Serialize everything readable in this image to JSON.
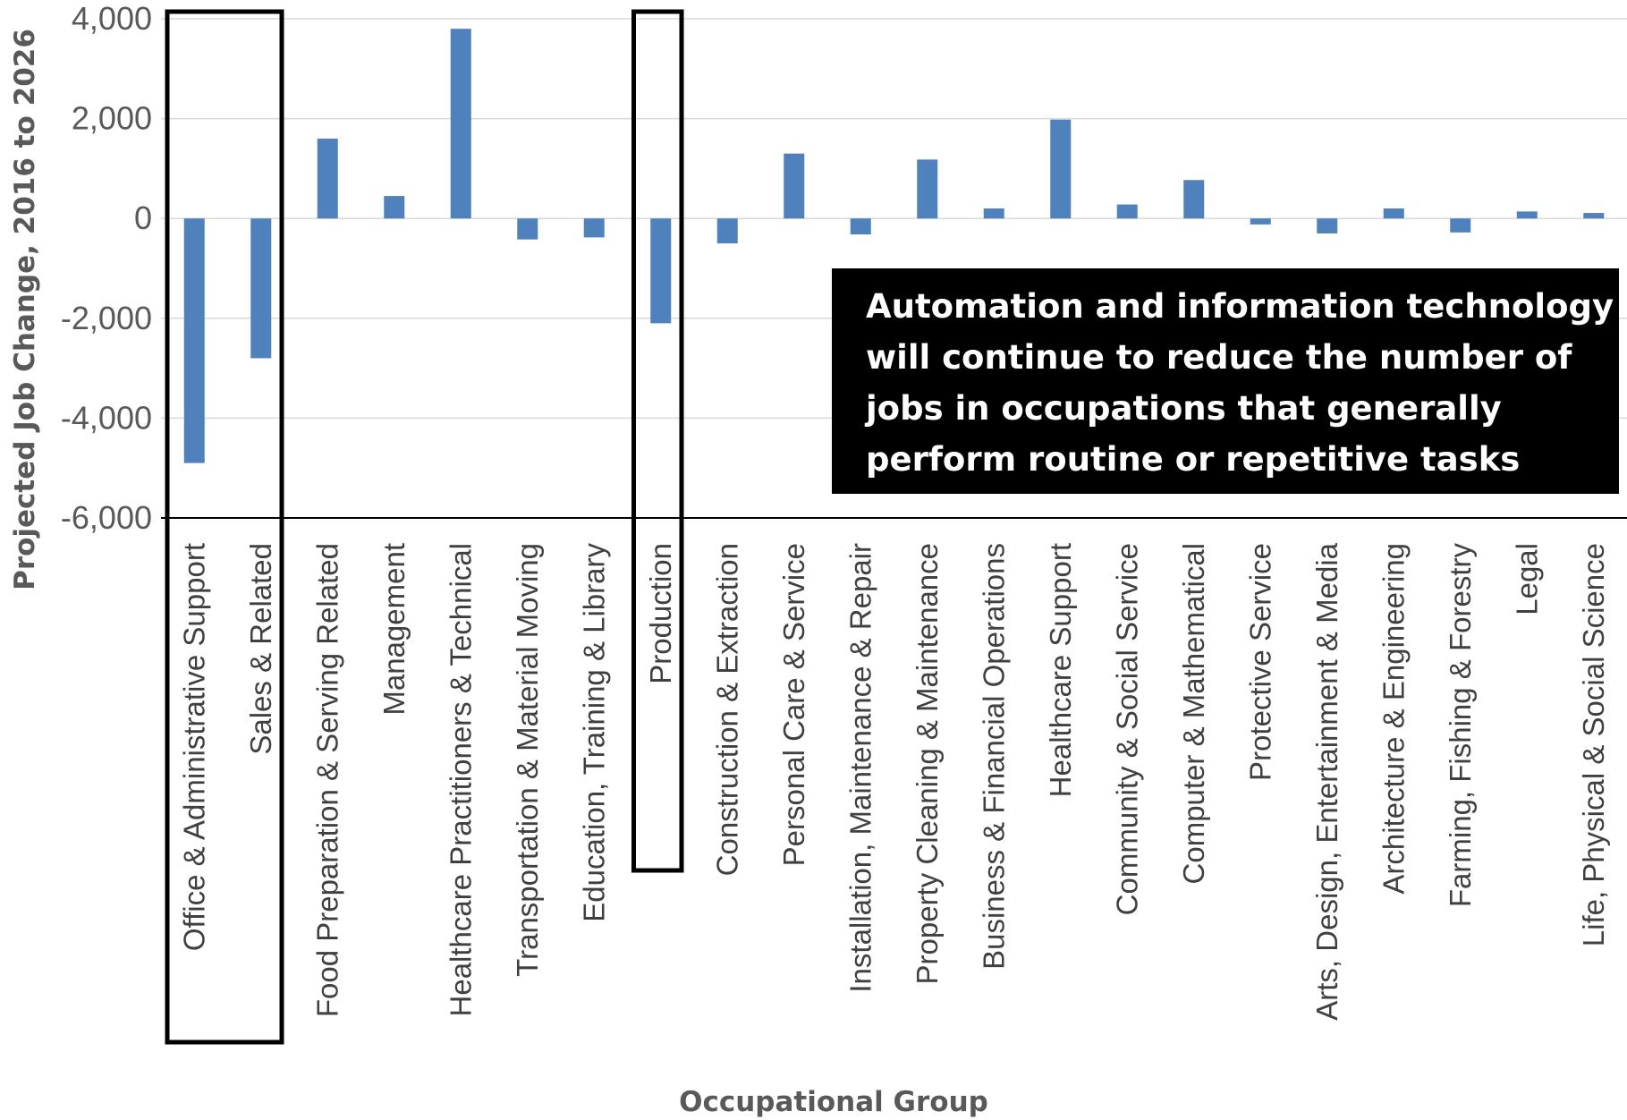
{
  "chart_data": {
    "type": "bar",
    "title": "",
    "xlabel": "Occupational Group",
    "ylabel": "Projected Job Change, 2016 to 2026",
    "ylim": [
      -6000,
      4000
    ],
    "yticks": [
      4000,
      2000,
      0,
      -2000,
      -4000,
      -6000
    ],
    "ytick_labels": [
      "4,000",
      "2,000",
      "0",
      "-2,000",
      "-4,000",
      "-6,000"
    ],
    "grid": true,
    "bar_color": "#4F81BD",
    "categories": [
      "Office & Administrative Support",
      "Sales & Related",
      "Food Preparation & Serving Related",
      "Management",
      "Healthcare Practitioners & Technical",
      "Transportation & Material Moving",
      "Education, Training & Library",
      "Production",
      "Construction & Extraction",
      "Personal Care & Service",
      "Installation, Maintenance & Repair",
      "Property Cleaning & Maintenance",
      "Business & Financial Operations",
      "Healthcare Support",
      "Community & Social Service",
      "Computer & Mathematical",
      "Protective Service",
      "Arts, Design, Entertainment & Media",
      "Architecture & Engineering",
      "Farming, Fishing & Forestry",
      "Legal",
      "Life, Physical & Social Science"
    ],
    "values": [
      -4900,
      -2800,
      1600,
      450,
      3800,
      -420,
      -380,
      -2100,
      -500,
      1300,
      -320,
      1180,
      200,
      1980,
      280,
      770,
      -120,
      -300,
      200,
      -280,
      140,
      110
    ],
    "highlighted_groups": [
      [
        "Office & Administrative Support",
        "Sales & Related"
      ],
      [
        "Production"
      ]
    ]
  },
  "annotation": {
    "lines": [
      "Automation and information technology",
      "will continue to reduce the number of",
      "jobs in occupations that generally",
      "perform routine or repetitive tasks"
    ]
  }
}
